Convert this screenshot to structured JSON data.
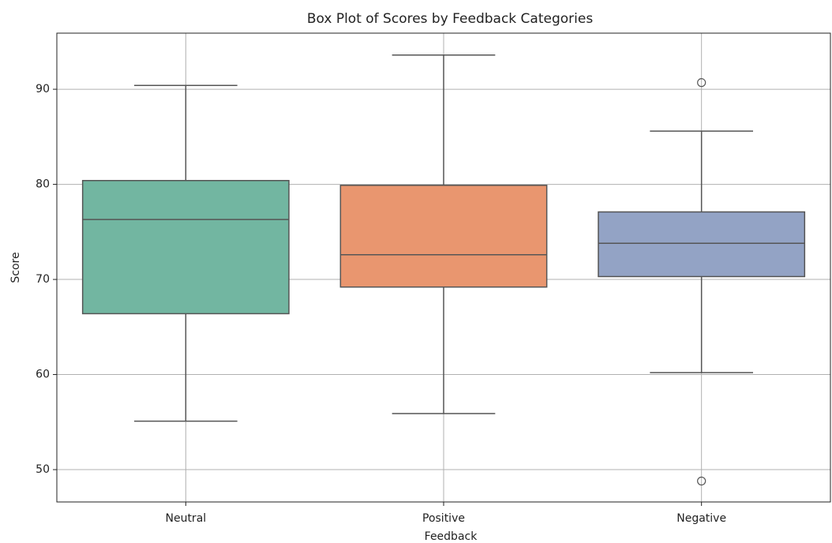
{
  "chart_data": {
    "type": "box",
    "title": "Box Plot of Scores by Feedback Categories",
    "xlabel": "Feedback",
    "ylabel": "Score",
    "categories": [
      "Neutral",
      "Positive",
      "Negative"
    ],
    "boxes": [
      {
        "min": 55.1,
        "q1": 66.4,
        "median": 76.3,
        "q3": 80.4,
        "max": 90.4,
        "outliers": [],
        "color": "#72b6a1"
      },
      {
        "min": 55.9,
        "q1": 69.2,
        "median": 72.6,
        "q3": 79.9,
        "max": 93.6,
        "outliers": [],
        "color": "#e9966f"
      },
      {
        "min": 60.2,
        "q1": 70.3,
        "median": 73.8,
        "q3": 77.1,
        "max": 85.6,
        "outliers": [
          90.7,
          48.8
        ],
        "color": "#93a3c5"
      }
    ],
    "ylim": [
      46.6,
      95.9
    ],
    "yticks": [
      50,
      60,
      70,
      80,
      90
    ],
    "grid": true
  }
}
